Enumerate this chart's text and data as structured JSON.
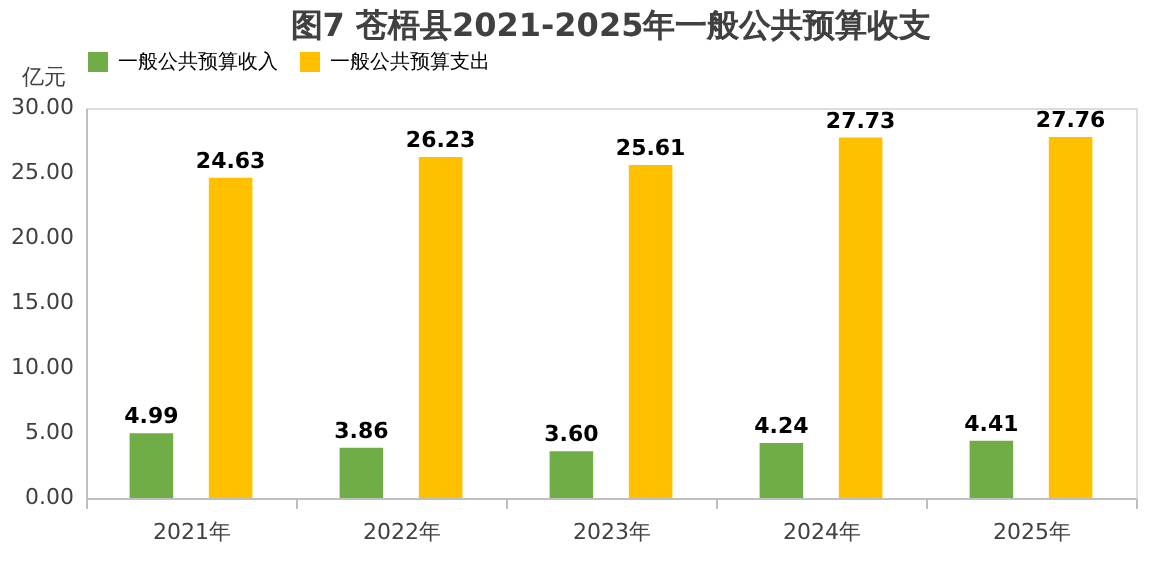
{
  "chart_data": {
    "type": "bar",
    "title": "图7  苍梧县2021-2025年一般公共预算收支",
    "ylabel": "亿元",
    "categories": [
      "2021年",
      "2022年",
      "2023年",
      "2024年",
      "2025年"
    ],
    "series": [
      {
        "name": "一般公共预算收入",
        "color": "#70ad47",
        "values": [
          4.99,
          3.86,
          3.6,
          4.24,
          4.41
        ],
        "value_labels": [
          "4.99",
          "3.86",
          "3.60",
          "4.24",
          "4.41"
        ]
      },
      {
        "name": "一般公共预算支出",
        "color": "#ffc000",
        "values": [
          24.63,
          26.23,
          25.61,
          27.73,
          27.76
        ],
        "value_labels": [
          "24.63",
          "26.23",
          "25.61",
          "27.73",
          "27.76"
        ]
      }
    ],
    "ylim": [
      0,
      30
    ],
    "yticks": [
      {
        "value": 0,
        "label": "0.00"
      },
      {
        "value": 5,
        "label": "5.00"
      },
      {
        "value": 10,
        "label": "10.00"
      },
      {
        "value": 15,
        "label": "15.00"
      },
      {
        "value": 20,
        "label": "20.00"
      },
      {
        "value": 25,
        "label": "25.00"
      },
      {
        "value": 30,
        "label": "30.00"
      }
    ],
    "grid": false,
    "legend": "top"
  }
}
